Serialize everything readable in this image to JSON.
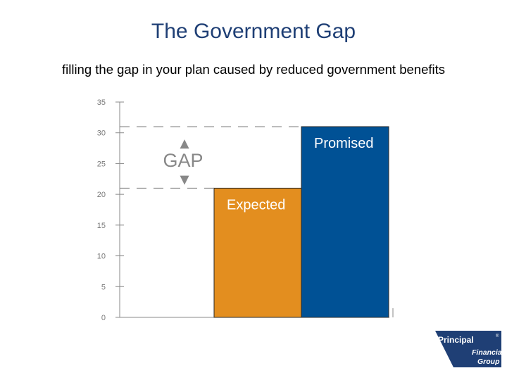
{
  "slide": {
    "title": "The Government Gap",
    "subtitle": "filling the gap in your plan caused by reduced government benefits"
  },
  "chart_data": {
    "type": "bar",
    "categories": [
      "Expected",
      "Promised"
    ],
    "values": [
      21,
      31
    ],
    "colors": [
      "#e38e1f",
      "#005195"
    ],
    "ylim": [
      0,
      35
    ],
    "yticks": [
      0,
      5,
      10,
      15,
      20,
      25,
      30,
      35
    ],
    "grid": false,
    "annotation": {
      "text": "GAP",
      "from": 21,
      "to": 31,
      "arrow_up": "▲",
      "arrow_down": "▼"
    }
  },
  "logo": {
    "brand": "Principal",
    "line2": "Financial",
    "line3": "Group",
    "color": "#1f3f75"
  }
}
